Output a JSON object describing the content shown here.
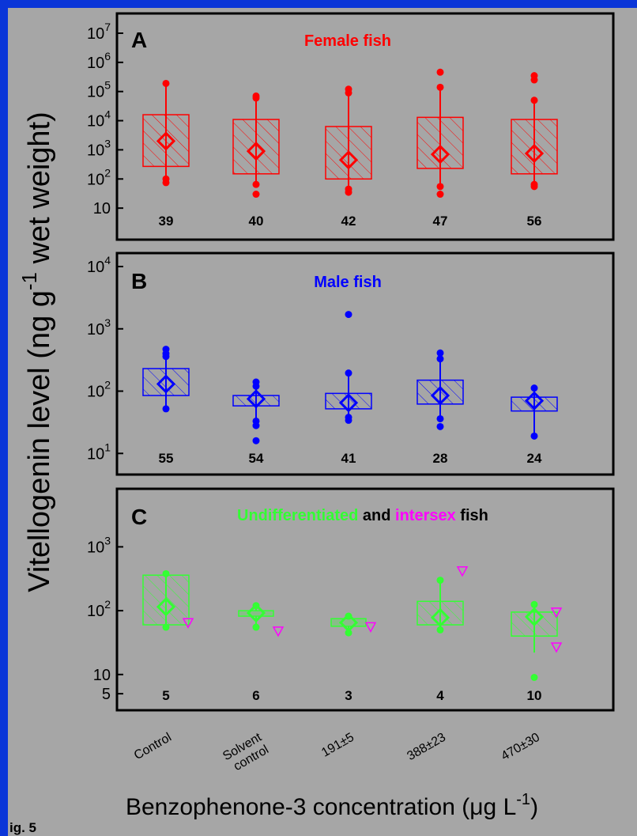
{
  "colors": {
    "page_bg": "#0a35d8",
    "figure_bg": "#a6a6a6",
    "frame": "#000000",
    "female": "#ff0000",
    "male": "#0000ff",
    "undiff": "#33ff33",
    "intersex": "#ff00ff"
  },
  "figure": {
    "ylabel_main": "Vitellogenin  level (ng g",
    "ylabel_sup": "-1",
    "ylabel_tail": " wet weight)",
    "xlabel_main": "Benzophenone-3 concentration (",
    "xlabel_mu": "μ",
    "xlabel_unit": "g L",
    "xlabel_sup": "-1",
    "xlabel_close": ")",
    "fig_label": "ig. 5",
    "x_categories": [
      "Control",
      "Solvent\ncontrol",
      "191±5",
      "388±23",
      "470±30"
    ]
  },
  "chart_data": [
    {
      "type": "box",
      "panel_letter": "A",
      "title": "Female fish",
      "yscale": "log",
      "ylim": [
        1,
        10000000
      ],
      "y_ticks": [
        {
          "v": 10,
          "base": "10",
          "exp": ""
        },
        {
          "v": 100,
          "base": "10",
          "exp": "2"
        },
        {
          "v": 1000,
          "base": "10",
          "exp": "3"
        },
        {
          "v": 10000,
          "base": "10",
          "exp": "4"
        },
        {
          "v": 100000,
          "base": "10",
          "exp": "5"
        },
        {
          "v": 1000000,
          "base": "10",
          "exp": "6"
        },
        {
          "v": 10000000,
          "base": "10",
          "exp": "7"
        }
      ],
      "series": [
        {
          "category": "Control",
          "n": "39",
          "q1": 270,
          "q3": 16000,
          "mean": 2000,
          "whisker_low": 100,
          "whisker_high": 180000,
          "outliers": [
            75,
            100,
            190000
          ],
          "color": "female",
          "hatched": true
        },
        {
          "category": "Solvent control",
          "n": "40",
          "q1": 150,
          "q3": 11000,
          "mean": 900,
          "whisker_low": 60,
          "whisker_high": 60000,
          "outliers": [
            30,
            65,
            60000,
            70000
          ],
          "color": "female",
          "hatched": true
        },
        {
          "category": "191±5",
          "n": "42",
          "q1": 100,
          "q3": 6300,
          "mean": 450,
          "whisker_low": 50,
          "whisker_high": 90000,
          "outliers": [
            35,
            45,
            90000,
            120000
          ],
          "color": "female",
          "hatched": true
        },
        {
          "category": "388±23",
          "n": "47",
          "q1": 230,
          "q3": 13000,
          "mean": 700,
          "whisker_low": 55,
          "whisker_high": 140000,
          "outliers": [
            30,
            55,
            140000,
            460000
          ],
          "color": "female",
          "hatched": true
        },
        {
          "category": "470±30",
          "n": "56",
          "q1": 150,
          "q3": 11000,
          "mean": 750,
          "whisker_low": 60,
          "whisker_high": 50000,
          "outliers": [
            55,
            65,
            50000,
            250000,
            350000
          ],
          "color": "female",
          "hatched": true
        }
      ]
    },
    {
      "type": "box",
      "panel_letter": "B",
      "title": "Male fish",
      "yscale": "log",
      "ylim": [
        5,
        10000
      ],
      "y_ticks": [
        {
          "v": 10,
          "base": "10",
          "exp": "1"
        },
        {
          "v": 100,
          "base": "10",
          "exp": "2"
        },
        {
          "v": 1000,
          "base": "10",
          "exp": "3"
        },
        {
          "v": 10000,
          "base": "10",
          "exp": "4"
        }
      ],
      "series": [
        {
          "category": "Control",
          "n": "55",
          "q1": 85,
          "q3": 230,
          "mean": 130,
          "whisker_low": 55,
          "whisker_high": 400,
          "outliers": [
            52,
            360,
            400,
            470
          ],
          "color": "male",
          "hatched": true
        },
        {
          "category": "Solvent control",
          "n": "54",
          "q1": 58,
          "q3": 85,
          "mean": 75,
          "whisker_low": 35,
          "whisker_high": 140,
          "outliers": [
            16,
            28,
            33,
            120,
            140
          ],
          "color": "male",
          "hatched": true
        },
        {
          "category": "191±5",
          "n": "41",
          "q1": 52,
          "q3": 92,
          "mean": 65,
          "whisker_low": 38,
          "whisker_high": 195,
          "outliers": [
            34,
            38,
            195,
            1700
          ],
          "color": "male",
          "hatched": true
        },
        {
          "category": "388±23",
          "n": "28",
          "q1": 62,
          "q3": 150,
          "mean": 85,
          "whisker_low": 35,
          "whisker_high": 350,
          "outliers": [
            27,
            36,
            330,
            410
          ],
          "color": "male",
          "hatched": true
        },
        {
          "category": "470±30",
          "n": "24",
          "q1": 48,
          "q3": 80,
          "mean": 70,
          "whisker_low": 19,
          "whisker_high": 112,
          "outliers": [
            19,
            112
          ],
          "color": "male",
          "hatched": true
        }
      ]
    },
    {
      "type": "box",
      "panel_letter": "C",
      "title_parts": [
        {
          "text": "Undifferentiated",
          "color": "undiff"
        },
        {
          "text": " and ",
          "color": "frame"
        },
        {
          "text": "intersex",
          "color": "intersex"
        },
        {
          "text": " fish",
          "color": "frame"
        }
      ],
      "yscale": "log",
      "ylim": [
        3,
        5000
      ],
      "y_ticks": [
        {
          "v": 5,
          "base": "5",
          "exp": ""
        },
        {
          "v": 10,
          "base": "10",
          "exp": ""
        },
        {
          "v": 100,
          "base": "10",
          "exp": "2"
        },
        {
          "v": 1000,
          "base": "10",
          "exp": "3"
        }
      ],
      "series": [
        {
          "category": "Control",
          "n": "5",
          "q1": 60,
          "q3": 360,
          "mean": 115,
          "whisker_low": 55,
          "whisker_high": 380,
          "outliers": [
            55,
            380
          ],
          "color": "undiff",
          "hatched": true,
          "intersex": [
            65
          ]
        },
        {
          "category": "Solvent control",
          "n": "6",
          "q1": 82,
          "q3": 100,
          "mean": 92,
          "whisker_low": 55,
          "whisker_high": 120,
          "outliers": [
            55,
            120
          ],
          "color": "undiff",
          "hatched": false,
          "intersex": [
            48
          ]
        },
        {
          "category": "191±5",
          "n": "3",
          "q1": 57,
          "q3": 75,
          "mean": 65,
          "whisker_low": 45,
          "whisker_high": 82,
          "outliers": [
            45,
            82
          ],
          "color": "undiff",
          "hatched": false,
          "intersex": [
            56
          ]
        },
        {
          "category": "388±23",
          "n": "4",
          "q1": 60,
          "q3": 140,
          "mean": 78,
          "whisker_low": 50,
          "whisker_high": 300,
          "outliers": [
            50,
            300
          ],
          "color": "undiff",
          "hatched": true,
          "intersex": [
            420
          ]
        },
        {
          "category": "470±30",
          "n": "10",
          "q1": 40,
          "q3": 95,
          "mean": 80,
          "whisker_low": 22,
          "whisker_high": 125,
          "outliers": [
            9,
            125
          ],
          "color": "undiff",
          "hatched": true,
          "intersex": [
            95,
            27
          ]
        }
      ]
    }
  ]
}
